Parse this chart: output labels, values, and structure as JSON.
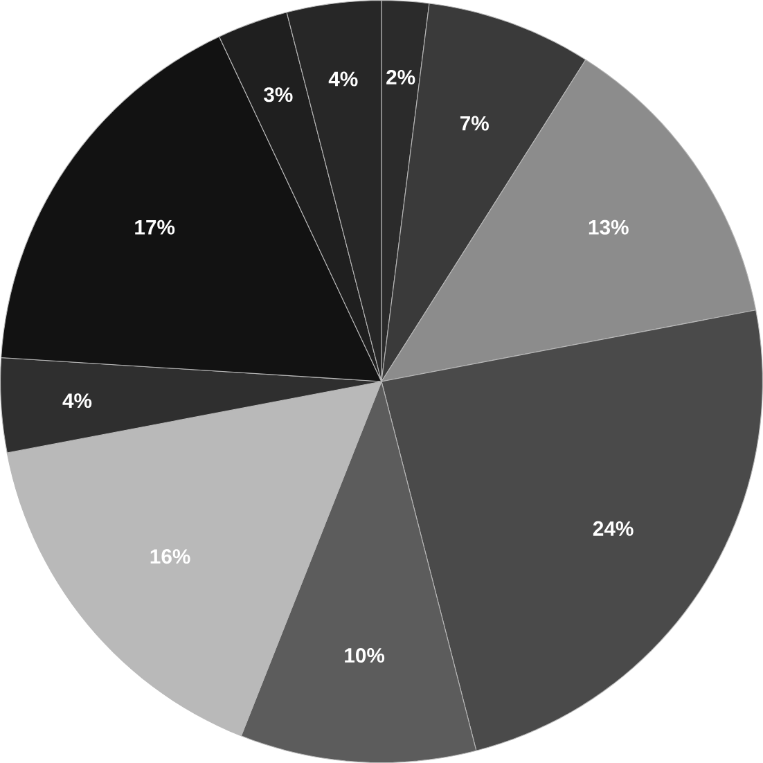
{
  "chart_data": {
    "type": "pie",
    "categories": [
      null,
      null,
      null,
      null,
      null,
      null,
      null,
      null,
      null,
      null
    ],
    "values": [
      2,
      7,
      13,
      24,
      10,
      16,
      4,
      17,
      3,
      4
    ],
    "value_labels": [
      "2%",
      "7%",
      "13%",
      "24%",
      "10%",
      "16%",
      "4%",
      "17%",
      "3%",
      "4%"
    ],
    "colors": [
      "#2b2b2b",
      "#3a3a3a",
      "#8c8c8c",
      "#4a4a4a",
      "#5c5c5c",
      "#b9b9b9",
      "#2f2f2f",
      "#121212",
      "#1f1f1f",
      "#272727"
    ]
  }
}
